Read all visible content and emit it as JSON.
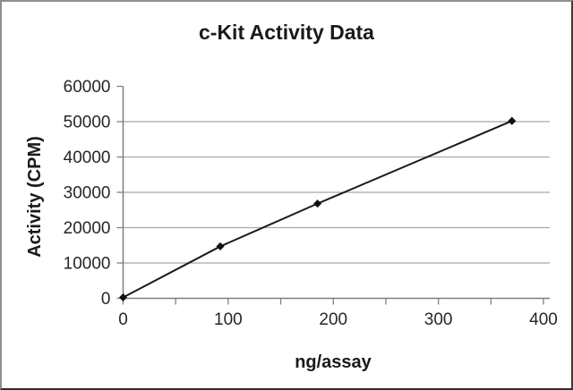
{
  "chart_data": {
    "type": "line",
    "title": "c-Kit Activity Data",
    "xlabel": "ng/assay",
    "ylabel": "Activity (CPM)",
    "x": [
      0,
      92.5,
      185,
      370
    ],
    "y": [
      250,
      14700,
      26800,
      50200
    ],
    "xlim": [
      0,
      400
    ],
    "ylim": [
      0,
      60000
    ],
    "x_major_ticks": [
      0,
      100,
      200,
      300,
      400
    ],
    "x_minor_tick_step": 50,
    "y_ticks": [
      0,
      10000,
      20000,
      30000,
      40000,
      50000,
      60000
    ],
    "grid": "horizontal-only",
    "legend": "none",
    "marker": "diamond",
    "colors": {
      "line": "#1a1a1a",
      "marker": "#111111",
      "grid": "#a8a8a8",
      "axis": "#7f7f7f",
      "text": "#262626",
      "background": "#ffffff"
    }
  }
}
